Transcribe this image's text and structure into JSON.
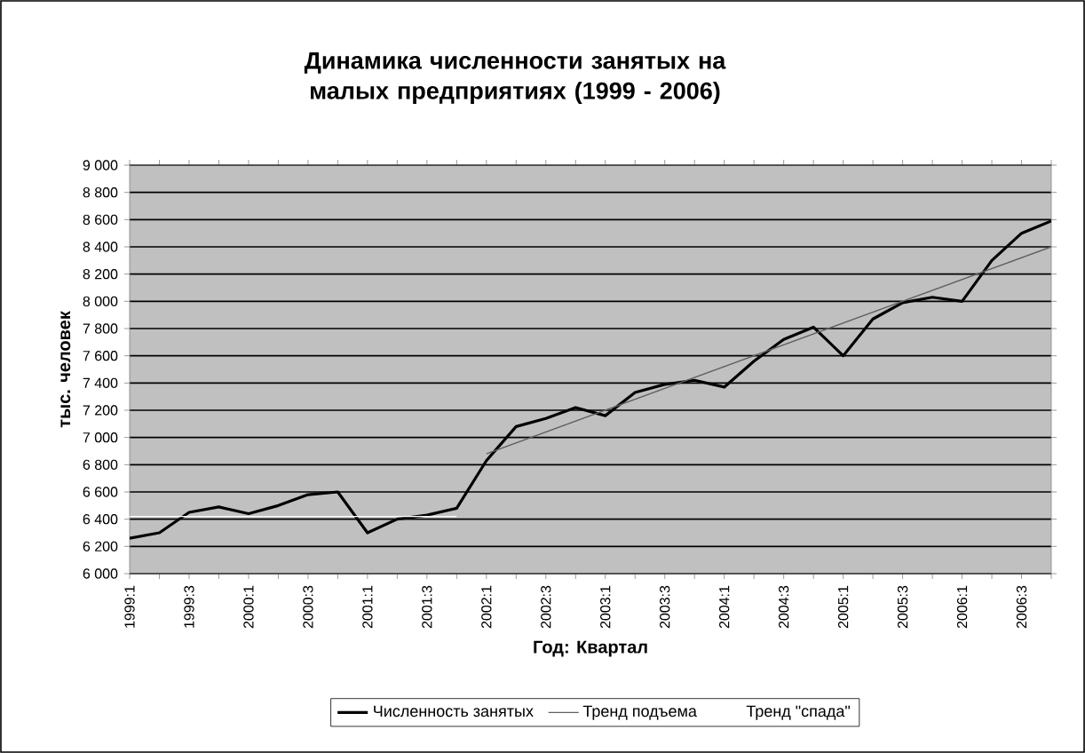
{
  "chart_data": {
    "type": "line",
    "title": "Динамика численности занятых на малых предприятиях (1999 - 2006)",
    "xlabel": "Год: Квартал",
    "ylabel": "тыс. человек",
    "categories": [
      "1999:1",
      null,
      "1999:3",
      null,
      "2000:1",
      null,
      "2000:3",
      null,
      "2001:1",
      null,
      "2001:3",
      null,
      "2002:1",
      null,
      "2002:3",
      null,
      "2003:1",
      null,
      "2003:3",
      null,
      "2004:1",
      null,
      "2004:3",
      null,
      "2005:1",
      null,
      "2005:3",
      null,
      "2006:1",
      null,
      "2006:3",
      null
    ],
    "series": [
      {
        "name": "Численность занятых",
        "color": "#000000",
        "values": [
          6260,
          6300,
          6450,
          6490,
          6440,
          6500,
          6580,
          6600,
          6300,
          6400,
          6430,
          6480,
          6830,
          7080,
          7140,
          7220,
          7160,
          7330,
          7390,
          7420,
          7370,
          7560,
          7720,
          7810,
          7600,
          7870,
          7990,
          8030,
          8000,
          8300,
          8500,
          8590
        ]
      },
      {
        "name": "Тренд подъема",
        "color": "#606060",
        "values": [
          null,
          null,
          null,
          null,
          null,
          null,
          null,
          null,
          null,
          null,
          null,
          null,
          6880,
          null,
          null,
          null,
          null,
          null,
          null,
          null,
          null,
          null,
          null,
          null,
          null,
          null,
          null,
          null,
          null,
          null,
          null,
          8400
        ]
      },
      {
        "name": "Тренд \"спада\"",
        "color": "#ffffff",
        "values": [
          6420,
          null,
          null,
          null,
          null,
          null,
          null,
          null,
          null,
          null,
          null,
          6420,
          null,
          null,
          null,
          null,
          null,
          null,
          null,
          null,
          null,
          null,
          null,
          null,
          null,
          null,
          null,
          null,
          null,
          null,
          null,
          null
        ]
      }
    ],
    "ylim": [
      6000,
      9000
    ],
    "yticks": [
      {
        "value": 6000,
        "label": "6 000"
      },
      {
        "value": 6200,
        "label": "6 200"
      },
      {
        "value": 6400,
        "label": "6 400"
      },
      {
        "value": 6600,
        "label": "6 600"
      },
      {
        "value": 6800,
        "label": "6 800"
      },
      {
        "value": 7000,
        "label": "7 000"
      },
      {
        "value": 7200,
        "label": "7 200"
      },
      {
        "value": 7400,
        "label": "7 400"
      },
      {
        "value": 7600,
        "label": "7 600"
      },
      {
        "value": 7800,
        "label": "7 800"
      },
      {
        "value": 8000,
        "label": "8 000"
      },
      {
        "value": 8200,
        "label": "8 200"
      },
      {
        "value": 8400,
        "label": "8 400"
      },
      {
        "value": 8600,
        "label": "8 600"
      },
      {
        "value": 8800,
        "label": "8 800"
      },
      {
        "value": 9000,
        "label": "9 000"
      }
    ],
    "grid": "y",
    "legend": "bottom"
  }
}
